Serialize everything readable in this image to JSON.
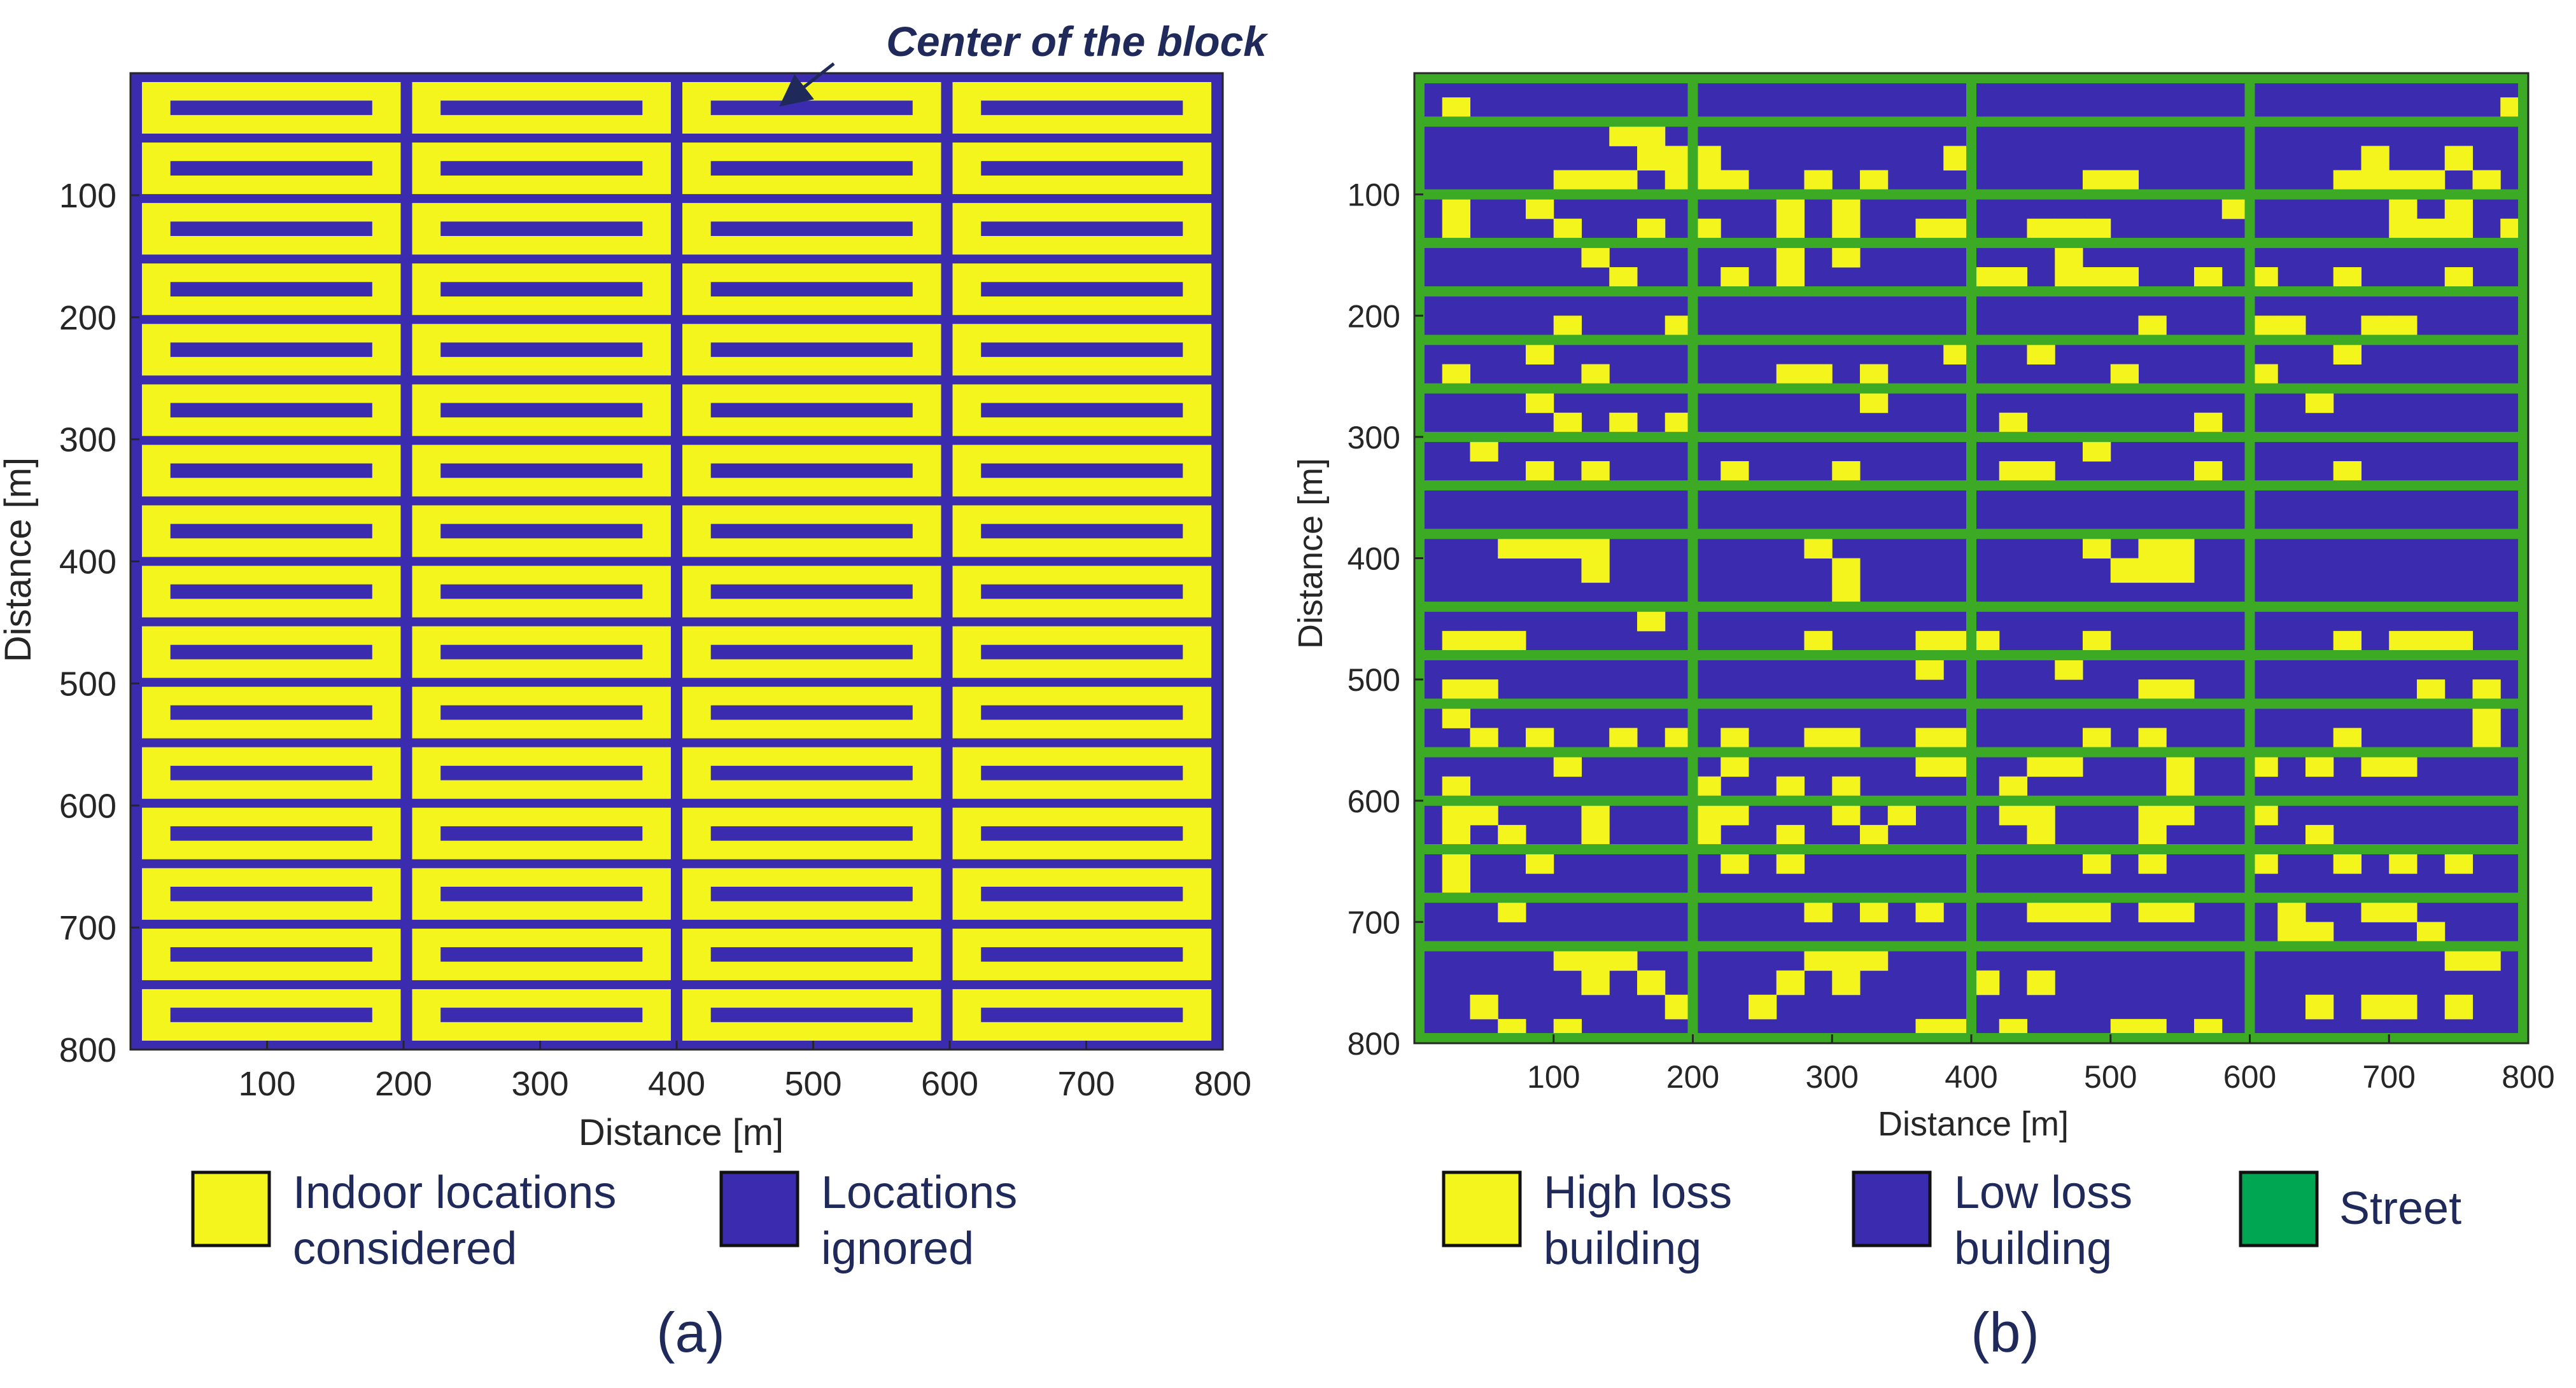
{
  "chart_data": [
    {
      "id": "a",
      "type": "heatmap",
      "title": "",
      "panel_label": "(a)",
      "xlabel": "Distance [m]",
      "ylabel": "Distance [m]",
      "xlim": [
        0,
        800
      ],
      "ylim": [
        800,
        0
      ],
      "xticks": [
        100,
        200,
        300,
        400,
        500,
        600,
        700,
        800
      ],
      "yticks": [
        100,
        200,
        300,
        400,
        500,
        600,
        700,
        800
      ],
      "grid": false,
      "block_columns": 4,
      "block_rows": 16,
      "annotation": "Center of the block",
      "legend": [
        {
          "label_line1": "Indoor locations",
          "label_line2": "considered",
          "color": "#F5F51E"
        },
        {
          "label_line1": "Locations",
          "label_line2": "ignored",
          "color": "#3B2BAE"
        }
      ]
    },
    {
      "id": "b",
      "type": "heatmap",
      "title": "",
      "panel_label": "(b)",
      "xlabel": "Distance [m]",
      "ylabel": "Distance [m]",
      "xlim": [
        0,
        800
      ],
      "ylim": [
        800,
        0
      ],
      "xticks": [
        100,
        200,
        300,
        400,
        500,
        600,
        700,
        800
      ],
      "yticks": [
        100,
        200,
        300,
        400,
        500,
        600,
        700,
        800
      ],
      "grid": false,
      "grid_size": 40,
      "cell_size_m": 20,
      "street_columns": [
        0,
        10,
        20,
        30,
        39
      ],
      "street_rows": [
        0,
        2,
        5,
        7,
        9,
        11,
        13,
        15,
        17,
        19,
        22,
        24,
        26,
        28,
        30,
        32,
        34,
        36,
        39
      ],
      "high_loss_cells": [
        [
          1,
          1
        ],
        [
          3,
          8
        ],
        [
          3,
          10
        ],
        [
          5,
          1
        ],
        [
          5,
          4
        ],
        [
          4,
          7
        ],
        [
          2,
          7
        ],
        [
          2,
          8
        ],
        [
          3,
          9
        ],
        [
          4,
          10
        ],
        [
          3,
          19
        ],
        [
          1,
          39
        ],
        [
          3,
          37
        ],
        [
          3,
          34
        ],
        [
          4,
          5
        ],
        [
          4,
          6
        ],
        [
          4,
          9
        ],
        [
          4,
          11
        ],
        [
          5,
          13
        ],
        [
          5,
          15
        ],
        [
          4,
          14
        ],
        [
          4,
          16
        ],
        [
          4,
          24
        ],
        [
          4,
          25
        ],
        [
          4,
          33
        ],
        [
          4,
          34
        ],
        [
          4,
          35
        ],
        [
          4,
          36
        ],
        [
          4,
          38
        ],
        [
          5,
          29
        ],
        [
          5,
          35
        ],
        [
          5,
          37
        ],
        [
          6,
          1
        ],
        [
          6,
          5
        ],
        [
          6,
          8
        ],
        [
          6,
          10
        ],
        [
          6,
          13
        ],
        [
          6,
          15
        ],
        [
          6,
          18
        ],
        [
          6,
          19
        ],
        [
          6,
          22
        ],
        [
          6,
          23
        ],
        [
          6,
          24
        ],
        [
          6,
          35
        ],
        [
          6,
          36
        ],
        [
          6,
          37
        ],
        [
          6,
          39
        ],
        [
          8,
          11
        ],
        [
          7,
          6
        ],
        [
          7,
          13
        ],
        [
          7,
          15
        ],
        [
          8,
          7
        ],
        [
          8,
          13
        ],
        [
          8,
          28
        ],
        [
          8,
          23
        ],
        [
          8,
          24
        ],
        [
          8,
          25
        ],
        [
          8,
          20
        ],
        [
          8,
          30
        ],
        [
          8,
          21
        ],
        [
          7,
          23
        ],
        [
          8,
          33
        ],
        [
          8,
          37
        ],
        [
          10,
          5
        ],
        [
          11,
          4
        ],
        [
          10,
          9
        ],
        [
          10,
          26
        ],
        [
          11,
          19
        ],
        [
          11,
          22
        ],
        [
          10,
          30
        ],
        [
          10,
          31
        ],
        [
          10,
          34
        ],
        [
          10,
          35
        ],
        [
          11,
          33
        ],
        [
          12,
          1
        ],
        [
          13,
          4
        ],
        [
          12,
          6
        ],
        [
          12,
          13
        ],
        [
          12,
          14
        ],
        [
          12,
          16
        ],
        [
          12,
          25
        ],
        [
          12,
          30
        ],
        [
          13,
          16
        ],
        [
          13,
          32
        ],
        [
          14,
          5
        ],
        [
          14,
          9
        ],
        [
          14,
          7
        ],
        [
          14,
          28
        ],
        [
          14,
          21
        ],
        [
          15,
          24
        ],
        [
          16,
          4
        ],
        [
          15,
          2
        ],
        [
          16,
          6
        ],
        [
          16,
          11
        ],
        [
          16,
          15
        ],
        [
          16,
          21
        ],
        [
          16,
          22
        ],
        [
          16,
          28
        ],
        [
          16,
          33
        ],
        [
          19,
          3
        ],
        [
          19,
          4
        ],
        [
          19,
          6
        ],
        [
          19,
          5
        ],
        [
          20,
          6
        ],
        [
          19,
          14
        ],
        [
          19,
          24
        ],
        [
          20,
          15
        ],
        [
          19,
          26
        ],
        [
          20,
          25
        ],
        [
          19,
          27
        ],
        [
          20,
          26
        ],
        [
          20,
          27
        ],
        [
          21,
          15
        ],
        [
          22,
          8
        ],
        [
          23,
          1
        ],
        [
          23,
          2
        ],
        [
          23,
          3
        ],
        [
          23,
          14
        ],
        [
          23,
          18
        ],
        [
          23,
          19
        ],
        [
          23,
          20
        ],
        [
          23,
          24
        ],
        [
          23,
          33
        ],
        [
          23,
          35
        ],
        [
          23,
          36
        ],
        [
          23,
          37
        ],
        [
          24,
          18
        ],
        [
          25,
          1
        ],
        [
          25,
          2
        ],
        [
          24,
          23
        ],
        [
          25,
          26
        ],
        [
          25,
          27
        ],
        [
          25,
          36
        ],
        [
          25,
          38
        ],
        [
          26,
          1
        ],
        [
          26,
          38
        ],
        [
          27,
          2
        ],
        [
          27,
          11
        ],
        [
          27,
          4
        ],
        [
          27,
          7
        ],
        [
          27,
          9
        ],
        [
          27,
          11
        ],
        [
          27,
          14
        ],
        [
          27,
          15
        ],
        [
          27,
          18
        ],
        [
          27,
          19
        ],
        [
          27,
          24
        ],
        [
          27,
          26
        ],
        [
          27,
          33
        ],
        [
          27,
          38
        ],
        [
          28,
          5
        ],
        [
          28,
          11
        ],
        [
          28,
          18
        ],
        [
          28,
          19
        ],
        [
          28,
          22
        ],
        [
          28,
          23
        ],
        [
          28,
          27
        ],
        [
          28,
          30
        ],
        [
          28,
          32
        ],
        [
          28,
          34
        ],
        [
          28,
          35
        ],
        [
          29,
          1
        ],
        [
          29,
          10
        ],
        [
          29,
          13
        ],
        [
          29,
          15
        ],
        [
          29,
          21
        ],
        [
          29,
          27
        ],
        [
          30,
          1
        ],
        [
          30,
          2
        ],
        [
          30,
          6
        ],
        [
          30,
          10
        ],
        [
          30,
          11
        ],
        [
          30,
          15
        ],
        [
          30,
          17
        ],
        [
          30,
          21
        ],
        [
          30,
          22
        ],
        [
          30,
          26
        ],
        [
          30,
          27
        ],
        [
          30,
          30
        ],
        [
          31,
          1
        ],
        [
          31,
          3
        ],
        [
          31,
          6
        ],
        [
          31,
          10
        ],
        [
          31,
          13
        ],
        [
          31,
          16
        ],
        [
          31,
          22
        ],
        [
          31,
          26
        ],
        [
          31,
          32
        ],
        [
          32,
          4
        ],
        [
          32,
          4
        ],
        [
          32,
          1
        ],
        [
          33,
          1
        ],
        [
          32,
          11
        ],
        [
          32,
          13
        ],
        [
          32,
          24
        ],
        [
          32,
          26
        ],
        [
          32,
          30
        ],
        [
          32,
          33
        ],
        [
          32,
          35
        ],
        [
          32,
          37
        ],
        [
          34,
          3
        ],
        [
          34,
          14
        ],
        [
          34,
          16
        ],
        [
          34,
          18
        ],
        [
          34,
          22
        ],
        [
          34,
          23
        ],
        [
          34,
          24
        ],
        [
          34,
          26
        ],
        [
          34,
          27
        ],
        [
          34,
          31
        ],
        [
          34,
          34
        ],
        [
          34,
          35
        ],
        [
          35,
          31
        ],
        [
          35,
          32
        ],
        [
          35,
          36
        ],
        [
          36,
          5
        ],
        [
          36,
          6
        ],
        [
          36,
          7
        ],
        [
          37,
          6
        ],
        [
          37,
          8
        ],
        [
          37,
          13
        ],
        [
          37,
          15
        ],
        [
          36,
          15
        ],
        [
          36,
          14
        ],
        [
          36,
          16
        ],
        [
          37,
          20
        ],
        [
          37,
          22
        ],
        [
          38,
          9
        ],
        [
          38,
          12
        ],
        [
          39,
          3
        ],
        [
          38,
          2
        ],
        [
          39,
          5
        ],
        [
          39,
          18
        ],
        [
          39,
          19
        ],
        [
          39,
          21
        ],
        [
          39,
          25
        ],
        [
          39,
          26
        ],
        [
          39,
          28
        ],
        [
          38,
          32
        ],
        [
          38,
          34
        ],
        [
          38,
          35
        ],
        [
          38,
          37
        ],
        [
          36,
          37
        ],
        [
          36,
          38
        ]
      ],
      "legend": [
        {
          "label_line1": "High loss",
          "label_line2": "building",
          "color": "#F5F51E"
        },
        {
          "label_line1": "Low loss",
          "label_line2": "building",
          "color": "#3B2BAE"
        },
        {
          "label_line1": "Street",
          "label_line2": "",
          "color": "#00A651"
        }
      ]
    }
  ],
  "colors": {
    "yellow": "#F5F51E",
    "blue": "#3B2BAE",
    "green_street": "#3DAA26",
    "legend_green": "#00A651",
    "text": "#262626",
    "annotation": "#1F2A5A"
  }
}
